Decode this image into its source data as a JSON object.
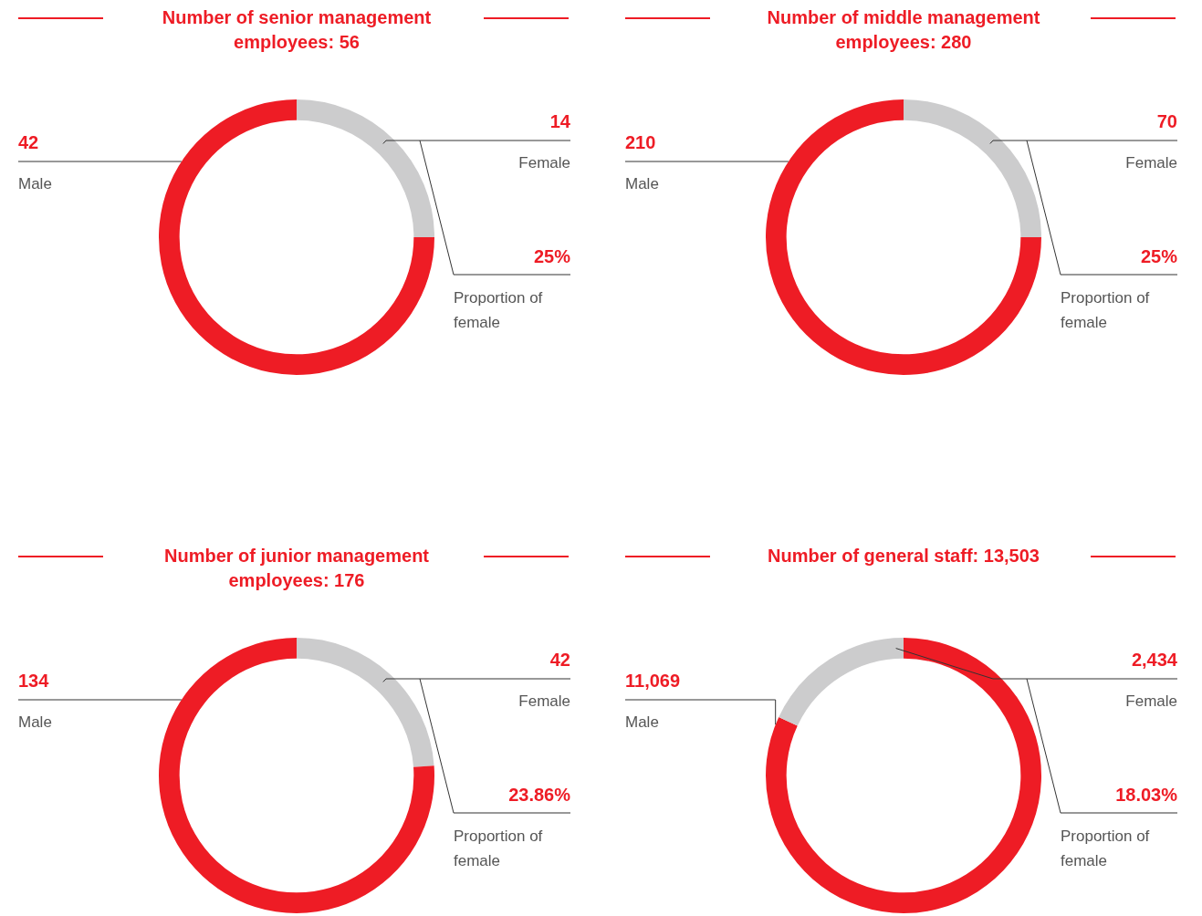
{
  "chart_data": [
    {
      "type": "donut",
      "title": "Number of senior management employees: 56",
      "categories": [
        "Female",
        "Male"
      ],
      "values": [
        14,
        42
      ],
      "colors": [
        "#cccccd",
        "#ee1c25"
      ],
      "data_labels": true,
      "legend": false,
      "annotations": [
        "25%",
        "Proportion of female"
      ]
    },
    {
      "type": "donut",
      "title": "Number of middle management employees: 280",
      "categories": [
        "Female",
        "Male"
      ],
      "values": [
        70,
        210
      ],
      "colors": [
        "#cccccd",
        "#ee1c25"
      ],
      "data_labels": true,
      "legend": false,
      "annotations": [
        "25%",
        "Proportion of female"
      ]
    },
    {
      "type": "donut",
      "title": "Number of junior management employees: 176",
      "categories": [
        "Female",
        "Male"
      ],
      "values": [
        42,
        134
      ],
      "colors": [
        "#cccccd",
        "#ee1c25"
      ],
      "data_labels": true,
      "legend": false,
      "annotations": [
        "23.86%",
        "Proportion of female"
      ]
    },
    {
      "type": "donut",
      "title": "Number of general staff: 13,503",
      "categories": [
        "Male",
        "Female"
      ],
      "values": [
        11069,
        2434
      ],
      "value_labels": [
        "11,069",
        "2,434"
      ],
      "colors": [
        "#ee1c25",
        "#cccccd"
      ],
      "legend": false,
      "annotations": [
        "18.03%",
        "Proportion of female"
      ]
    }
  ]
}
